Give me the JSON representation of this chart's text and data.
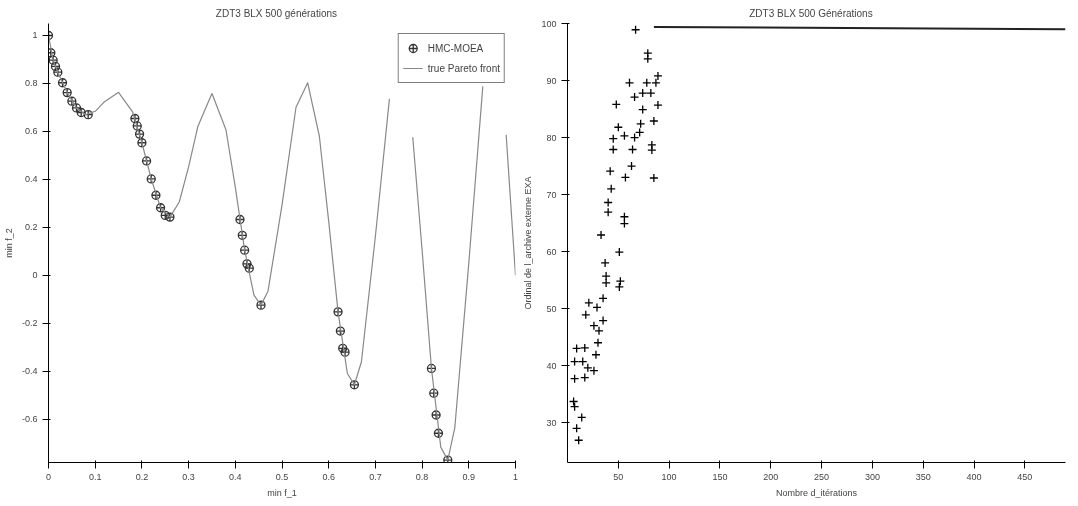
{
  "chart_data": [
    {
      "type": "scatter",
      "title": "ZDT3   BLX   500 générations",
      "xlabel": "min f_1",
      "ylabel": "min f_2",
      "xlim": [
        0,
        1
      ],
      "ylim": [
        -0.78,
        1.05
      ],
      "xticks": [
        0,
        0.1,
        0.2,
        0.3,
        0.4,
        0.5,
        0.6,
        0.7,
        0.8,
        0.9,
        1
      ],
      "yticks": [
        -0.6,
        -0.4,
        -0.2,
        0,
        0.2,
        0.4,
        0.6,
        0.8,
        1
      ],
      "grid": false,
      "legend": "top right",
      "series": [
        {
          "name": "HMC-MOEA",
          "marker": "circle",
          "color": "#333333",
          "x": [
            0,
            0.005,
            0.01,
            0.015,
            0.02,
            0.03,
            0.04,
            0.05,
            0.06,
            0.07,
            0.085,
            0.185,
            0.19,
            0.195,
            0.2,
            0.21,
            0.22,
            0.23,
            0.24,
            0.25,
            0.26,
            0.41,
            0.415,
            0.42,
            0.425,
            0.43,
            0.455,
            0.62,
            0.625,
            0.63,
            0.635,
            0.655,
            0.82,
            0.825,
            0.83,
            0.835,
            0.855
          ],
          "values": [
            1.0,
            0.928,
            0.897,
            0.871,
            0.847,
            0.803,
            0.762,
            0.726,
            0.698,
            0.679,
            0.67,
            0.654,
            0.623,
            0.589,
            0.553,
            0.477,
            0.402,
            0.334,
            0.282,
            0.25,
            0.243,
            0.233,
            0.167,
            0.105,
            0.048,
            0.03,
            -0.124,
            -0.152,
            -0.232,
            -0.304,
            -0.32,
            -0.456,
            -0.388,
            -0.491,
            -0.582,
            -0.658,
            -0.77
          ]
        },
        {
          "name": "true Pareto front",
          "type": "line",
          "color": "#888888",
          "x": [
            0,
            0.01,
            0.02,
            0.04,
            0.06,
            0.08,
            0.1,
            0.12,
            0.15,
            0.18,
            0.2,
            0.22,
            0.24,
            0.26,
            0.28,
            0.3,
            0.32,
            0.35,
            0.38,
            0.4,
            0.42,
            0.44,
            0.455,
            0.47,
            0.5,
            0.53,
            0.555,
            0.58,
            0.6,
            0.62,
            0.64,
            0.655,
            0.67,
            0.7,
            0.73,
            0.755,
            0.78,
            0.8,
            0.82,
            0.84,
            0.855,
            0.87,
            0.9,
            0.93,
            0.955,
            0.98,
            1.0
          ],
          "values": [
            1.0,
            0.897,
            0.847,
            0.762,
            0.698,
            0.67,
            0.684,
            0.724,
            0.763,
            0.682,
            0.553,
            0.402,
            0.282,
            0.243,
            0.306,
            0.452,
            0.622,
            0.758,
            0.607,
            0.368,
            0.105,
            -0.082,
            -0.124,
            -0.066,
            0.293,
            0.701,
            0.803,
            0.58,
            0.225,
            -0.152,
            -0.409,
            -0.456,
            -0.361,
            0.163,
            0.736,
            null,
            0.576,
            0.106,
            -0.388,
            -0.716,
            -0.77,
            -0.636,
            0.051,
            0.788,
            null,
            0.586,
            0
          ]
        }
      ]
    },
    {
      "type": "scatter",
      "title": "ZDT3   BLX   500 Générations",
      "xlabel": "Nombre d_itérations",
      "ylabel": "Ordinal de l_archive externe EXA",
      "xlim": [
        0,
        490
      ],
      "ylim": [
        23,
        100
      ],
      "xticks": [
        50,
        100,
        150,
        200,
        250,
        300,
        350,
        400,
        450
      ],
      "yticks": [
        30,
        40,
        50,
        60,
        70,
        80,
        90,
        100
      ],
      "grid": false,
      "series": [
        {
          "marker": "cross",
          "color": "#000000",
          "x": [
            67,
            79,
            79,
            61,
            78,
            89,
            87,
            66,
            74,
            82,
            48,
            89,
            74,
            85,
            72,
            71,
            50,
            45,
            56,
            45,
            64,
            66,
            83,
            83,
            63,
            57,
            85,
            42,
            43,
            40,
            40,
            56,
            56,
            33,
            51,
            37,
            38,
            38,
            52,
            51,
            35,
            21,
            29,
            18,
            35,
            26,
            31,
            30,
            28,
            26,
            9,
            17,
            7,
            15,
            20,
            7,
            17,
            6,
            7,
            14,
            9,
            11
          ],
          "values": [
            98.9,
            94.8,
            93.8,
            89.6,
            89.6,
            90.8,
            89.6,
            87.1,
            87.8,
            87.8,
            85.8,
            85.7,
            84.9,
            82.9,
            82.4,
            80.9,
            81.8,
            79.8,
            80.3,
            77.9,
            77.9,
            80,
            78.7,
            77.8,
            75,
            73,
            72.9,
            74.1,
            71,
            68.6,
            66.9,
            66.1,
            64.9,
            62.9,
            59.9,
            58,
            55.7,
            54.5,
            54.8,
            53.8,
            51.8,
            51,
            50.2,
            48.9,
            47.9,
            47,
            46.1,
            44,
            41.9,
            39.1,
            43,
            43.1,
            40.7,
            40.7,
            39.6,
            37.7,
            37.9,
            33.7,
            32.8,
            30.9,
            29,
            26.9
          ]
        },
        {
          "type": "line",
          "color": "#222222",
          "x": [
            85,
            490
          ],
          "values": [
            99.4,
            99.0
          ]
        }
      ]
    }
  ]
}
